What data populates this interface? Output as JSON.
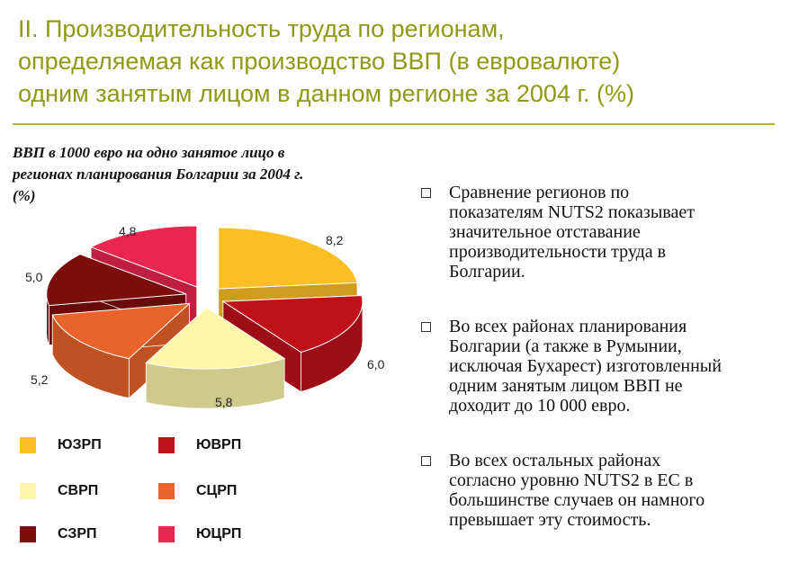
{
  "title": {
    "lines": [
      "II. Производительность труда по регионам,",
      "определяемая как производство ВВП (в евровалюте)",
      "одним занятым лицом в данном регионе за 2004 г. (%)"
    ]
  },
  "chart_data": {
    "type": "pie",
    "title_lines": [
      "ВВП в 1000 евро на одно занятое лицо в",
      "регионах планирования Болгарии за 2004 г.",
      "(%)"
    ],
    "categories": [
      "ЮЗРП",
      "ЮВРП",
      "СВРП",
      "СЦРП",
      "СЗРП",
      "ЮЦРП"
    ],
    "values": [
      8.2,
      6.0,
      5.8,
      5.2,
      5.0,
      4.8
    ],
    "value_labels": [
      "8,2",
      "6,0",
      "5,8",
      "5,2",
      "5,0",
      "4,8"
    ],
    "colors": [
      "#fbbf23",
      "#c0111b",
      "#fdf5a9",
      "#e9632b",
      "#7d0d0d",
      "#e8264e"
    ],
    "legend": [
      {
        "label": "ЮЗРП",
        "color": "#fbbf23"
      },
      {
        "label": "ЮВРП",
        "color": "#c0111b"
      },
      {
        "label": "СВРП",
        "color": "#fdf5a9"
      },
      {
        "label": "СЦРП",
        "color": "#e9632b"
      },
      {
        "label": "СЗРП",
        "color": "#7d0d0d"
      },
      {
        "label": "ЮЦРП",
        "color": "#e8264e"
      }
    ]
  },
  "bullets": [
    {
      "lines": [
        "Сравнение регионов по",
        "показателям NUTS2 показывает",
        "значительное отставание",
        "производительности труда в",
        "Болгарии."
      ]
    },
    {
      "lines": [
        "Во всех районах планирования",
        "Болгарии (а также в Румынии,",
        "исключая Бухарест) изготовленный",
        "одним занятым лицом ВВП не",
        "доходит до 10 000 евро."
      ]
    },
    {
      "lines": [
        "Во всех остальных районах",
        "согласно уровню NUTS2 в ЕС в",
        "большинстве случаев он намного",
        "превышает эту стоимость."
      ]
    }
  ]
}
